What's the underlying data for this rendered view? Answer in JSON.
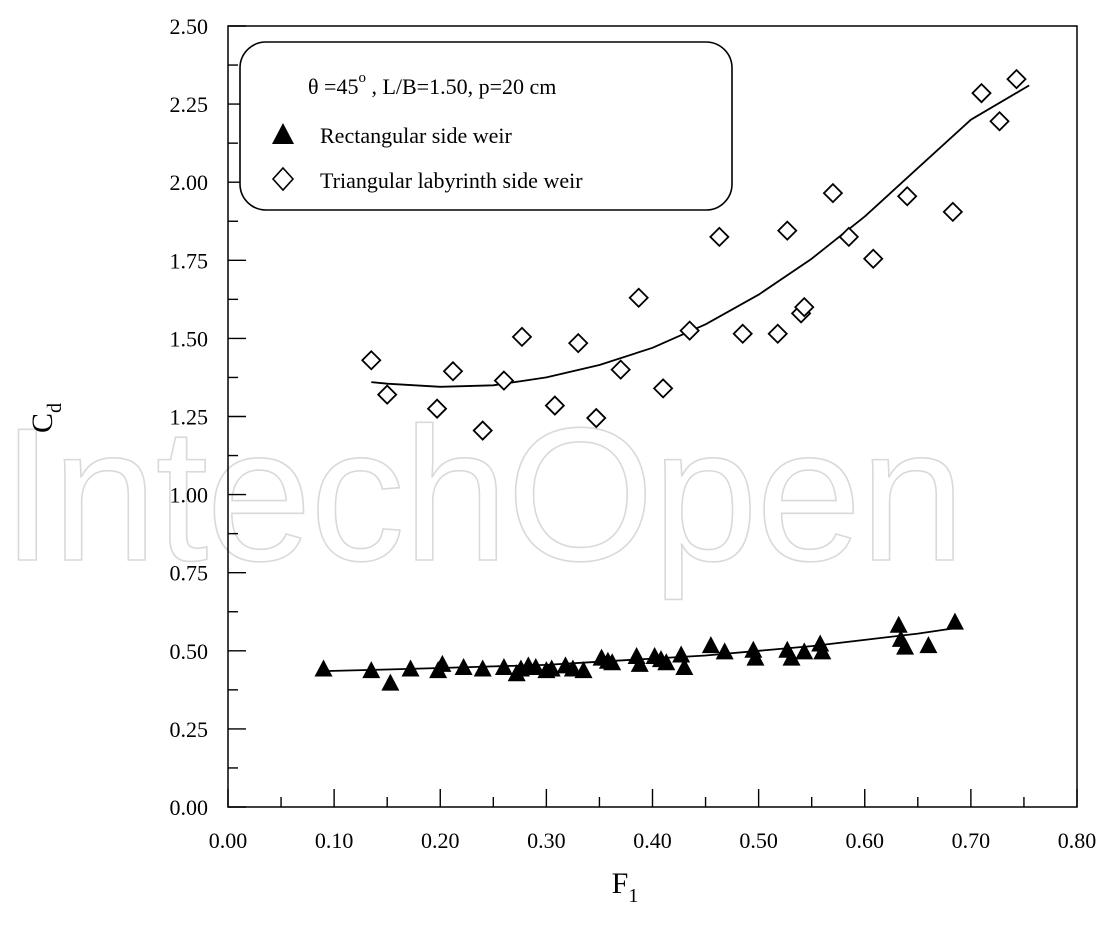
{
  "chart_data": {
    "type": "scatter",
    "xlabel": "F",
    "xlabel_sub": "1",
    "ylabel": "C",
    "ylabel_sub": "d",
    "xlim": [
      0.0,
      0.8
    ],
    "ylim": [
      0.0,
      2.5
    ],
    "x_tick_labels": [
      "0.00",
      "0.10",
      "0.20",
      "0.30",
      "0.40",
      "0.50",
      "0.60",
      "0.70",
      "0.80"
    ],
    "y_tick_labels": [
      "0.00",
      "0.25",
      "0.50",
      "0.75",
      "1.00",
      "1.25",
      "1.50",
      "1.75",
      "2.00",
      "2.25",
      "2.50"
    ],
    "grid": false,
    "legend": {
      "position": "top-left",
      "title_prefix": "θ =45",
      "title_sup": "o",
      "title_rest": " , L/B=1.50, p=20 cm",
      "entries": [
        "Rectangular side weir",
        "Triangular labyrinth side weir"
      ]
    },
    "watermark": "IntechOpen",
    "series": [
      {
        "name": "Rectangular side weir",
        "marker": "filled-triangle",
        "x": [
          0.09,
          0.135,
          0.153,
          0.172,
          0.198,
          0.202,
          0.222,
          0.24,
          0.26,
          0.272,
          0.276,
          0.283,
          0.29,
          0.3,
          0.305,
          0.318,
          0.325,
          0.335,
          0.352,
          0.358,
          0.362,
          0.385,
          0.388,
          0.402,
          0.408,
          0.413,
          0.427,
          0.43,
          0.455,
          0.468,
          0.495,
          0.497,
          0.527,
          0.531,
          0.543,
          0.558,
          0.56,
          0.632,
          0.634,
          0.638,
          0.66,
          0.685
        ],
        "y": [
          0.44,
          0.435,
          0.395,
          0.44,
          0.435,
          0.455,
          0.445,
          0.44,
          0.445,
          0.425,
          0.44,
          0.45,
          0.445,
          0.435,
          0.44,
          0.45,
          0.44,
          0.435,
          0.475,
          0.465,
          0.46,
          0.48,
          0.455,
          0.48,
          0.47,
          0.46,
          0.485,
          0.445,
          0.515,
          0.495,
          0.5,
          0.475,
          0.5,
          0.475,
          0.495,
          0.52,
          0.495,
          0.58,
          0.535,
          0.51,
          0.515,
          0.59
        ]
      },
      {
        "name": "Triangular labyrinth side weir",
        "marker": "open-diamond",
        "x": [
          0.135,
          0.15,
          0.197,
          0.212,
          0.24,
          0.26,
          0.277,
          0.308,
          0.33,
          0.347,
          0.37,
          0.387,
          0.41,
          0.435,
          0.463,
          0.485,
          0.518,
          0.527,
          0.54,
          0.543,
          0.57,
          0.585,
          0.608,
          0.64,
          0.683,
          0.71,
          0.727,
          0.743
        ],
        "y": [
          1.43,
          1.32,
          1.275,
          1.395,
          1.205,
          1.365,
          1.505,
          1.285,
          1.485,
          1.245,
          1.4,
          1.63,
          1.34,
          1.525,
          1.825,
          1.515,
          1.515,
          1.845,
          1.58,
          1.6,
          1.965,
          1.825,
          1.755,
          1.955,
          1.905,
          2.285,
          2.195,
          2.33
        ]
      }
    ],
    "fit_curves": [
      {
        "for": "Rectangular side weir",
        "x": [
          0.09,
          0.15,
          0.2,
          0.25,
          0.3,
          0.35,
          0.4,
          0.45,
          0.5,
          0.55,
          0.6,
          0.65,
          0.69
        ],
        "y": [
          0.435,
          0.44,
          0.445,
          0.45,
          0.455,
          0.465,
          0.475,
          0.485,
          0.5,
          0.515,
          0.535,
          0.555,
          0.575
        ]
      },
      {
        "for": "Triangular labyrinth side weir",
        "x": [
          0.135,
          0.15,
          0.2,
          0.25,
          0.3,
          0.35,
          0.4,
          0.45,
          0.5,
          0.55,
          0.6,
          0.65,
          0.7,
          0.755
        ],
        "y": [
          1.36,
          1.355,
          1.345,
          1.35,
          1.375,
          1.415,
          1.47,
          1.545,
          1.64,
          1.755,
          1.89,
          2.045,
          2.2,
          2.31
        ]
      }
    ]
  }
}
